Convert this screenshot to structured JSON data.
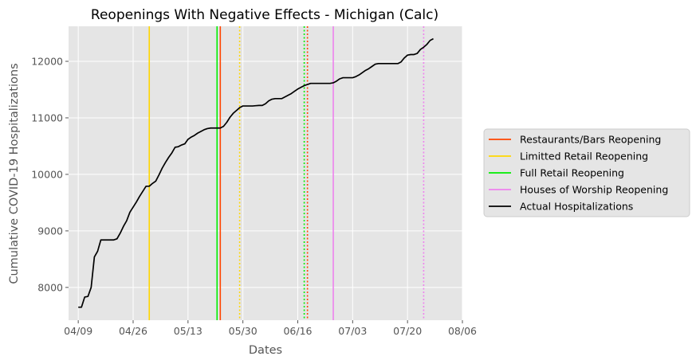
{
  "chart_data": {
    "type": "line",
    "title": "Reopenings With Negative Effects - Michigan (Calc)",
    "xlabel": "Dates",
    "ylabel": "Cumulative COVID-19 Hospitalizations",
    "x_axis_type": "date",
    "xlim": [
      "2020-04-06",
      "2020-08-06"
    ],
    "ylim": [
      7420,
      12620
    ],
    "x_ticks": [
      {
        "date": "2020-04-09",
        "label": "04/09"
      },
      {
        "date": "2020-04-26",
        "label": "04/26"
      },
      {
        "date": "2020-05-13",
        "label": "05/13"
      },
      {
        "date": "2020-05-30",
        "label": "05/30"
      },
      {
        "date": "2020-06-16",
        "label": "06/16"
      },
      {
        "date": "2020-07-03",
        "label": "07/03"
      },
      {
        "date": "2020-07-20",
        "label": "07/20"
      },
      {
        "date": "2020-08-06",
        "label": "08/06"
      }
    ],
    "y_ticks": [
      8000,
      9000,
      10000,
      11000,
      12000
    ],
    "grid": true,
    "legend_position": "right",
    "colors": {
      "restaurants": "#ff4500",
      "limited_retail": "#ffd700",
      "full_retail": "#00ee00",
      "worship": "#ee82ee",
      "actual": "#000000"
    },
    "legend": [
      {
        "label": "Restaurants/Bars Reopening",
        "color": "#ff4500"
      },
      {
        "label": "Limitted Retail Reopening",
        "color": "#ffd700"
      },
      {
        "label": "Full Retail Reopening",
        "color": "#00ee00"
      },
      {
        "label": "Houses of Worship Reopening",
        "color": "#ee82ee"
      },
      {
        "label": "Actual Hospitalizations",
        "color": "#000000"
      }
    ],
    "vertical_lines": [
      {
        "date": "2020-05-01",
        "color": "#ffd700",
        "style": "solid"
      },
      {
        "date": "2020-05-29",
        "color": "#ffd700",
        "style": "dotted"
      },
      {
        "date": "2020-05-22",
        "color": "#00ee00",
        "style": "solid"
      },
      {
        "date": "2020-06-18",
        "color": "#00ee00",
        "style": "dotted"
      },
      {
        "date": "2020-05-23",
        "color": "#ff4500",
        "style": "solid"
      },
      {
        "date": "2020-06-19",
        "color": "#ff4500",
        "style": "dotted"
      },
      {
        "date": "2020-06-27",
        "color": "#ee82ee",
        "style": "solid"
      },
      {
        "date": "2020-07-25",
        "color": "#ee82ee",
        "style": "dotted"
      }
    ],
    "series": [
      {
        "name": "Actual Hospitalizations",
        "color": "#000000",
        "points": [
          [
            "2020-04-09",
            7650
          ],
          [
            "2020-04-10",
            7650
          ],
          [
            "2020-04-11",
            7830
          ],
          [
            "2020-04-12",
            7840
          ],
          [
            "2020-04-13",
            8000
          ],
          [
            "2020-04-14",
            8540
          ],
          [
            "2020-04-15",
            8640
          ],
          [
            "2020-04-16",
            8840
          ],
          [
            "2020-04-17",
            8840
          ],
          [
            "2020-04-18",
            8840
          ],
          [
            "2020-04-19",
            8840
          ],
          [
            "2020-04-20",
            8840
          ],
          [
            "2020-04-21",
            8860
          ],
          [
            "2020-04-22",
            8960
          ],
          [
            "2020-04-23",
            9080
          ],
          [
            "2020-04-24",
            9180
          ],
          [
            "2020-04-25",
            9330
          ],
          [
            "2020-04-26",
            9420
          ],
          [
            "2020-04-27",
            9510
          ],
          [
            "2020-04-28",
            9610
          ],
          [
            "2020-04-29",
            9700
          ],
          [
            "2020-04-30",
            9790
          ],
          [
            "2020-05-01",
            9790
          ],
          [
            "2020-05-02",
            9840
          ],
          [
            "2020-05-03",
            9880
          ],
          [
            "2020-05-04",
            9990
          ],
          [
            "2020-05-05",
            10110
          ],
          [
            "2020-05-06",
            10210
          ],
          [
            "2020-05-07",
            10300
          ],
          [
            "2020-05-08",
            10380
          ],
          [
            "2020-05-09",
            10480
          ],
          [
            "2020-05-10",
            10490
          ],
          [
            "2020-05-11",
            10520
          ],
          [
            "2020-05-12",
            10540
          ],
          [
            "2020-05-13",
            10620
          ],
          [
            "2020-05-14",
            10660
          ],
          [
            "2020-05-15",
            10690
          ],
          [
            "2020-05-16",
            10730
          ],
          [
            "2020-05-17",
            10760
          ],
          [
            "2020-05-18",
            10790
          ],
          [
            "2020-05-19",
            10810
          ],
          [
            "2020-05-20",
            10820
          ],
          [
            "2020-05-21",
            10820
          ],
          [
            "2020-05-22",
            10820
          ],
          [
            "2020-05-23",
            10820
          ],
          [
            "2020-05-24",
            10850
          ],
          [
            "2020-05-25",
            10920
          ],
          [
            "2020-05-26",
            11010
          ],
          [
            "2020-05-27",
            11080
          ],
          [
            "2020-05-28",
            11130
          ],
          [
            "2020-05-29",
            11180
          ],
          [
            "2020-05-30",
            11210
          ],
          [
            "2020-05-31",
            11210
          ],
          [
            "2020-06-01",
            11210
          ],
          [
            "2020-06-02",
            11210
          ],
          [
            "2020-06-03",
            11215
          ],
          [
            "2020-06-04",
            11220
          ],
          [
            "2020-06-05",
            11220
          ],
          [
            "2020-06-06",
            11250
          ],
          [
            "2020-06-07",
            11300
          ],
          [
            "2020-06-08",
            11330
          ],
          [
            "2020-06-09",
            11340
          ],
          [
            "2020-06-10",
            11340
          ],
          [
            "2020-06-11",
            11340
          ],
          [
            "2020-06-12",
            11370
          ],
          [
            "2020-06-13",
            11400
          ],
          [
            "2020-06-14",
            11430
          ],
          [
            "2020-06-15",
            11470
          ],
          [
            "2020-06-16",
            11510
          ],
          [
            "2020-06-17",
            11540
          ],
          [
            "2020-06-18",
            11570
          ],
          [
            "2020-06-19",
            11590
          ],
          [
            "2020-06-20",
            11610
          ],
          [
            "2020-06-21",
            11610
          ],
          [
            "2020-06-22",
            11610
          ],
          [
            "2020-06-23",
            11610
          ],
          [
            "2020-06-24",
            11610
          ],
          [
            "2020-06-25",
            11610
          ],
          [
            "2020-06-26",
            11610
          ],
          [
            "2020-06-27",
            11620
          ],
          [
            "2020-06-28",
            11650
          ],
          [
            "2020-06-29",
            11690
          ],
          [
            "2020-06-30",
            11710
          ],
          [
            "2020-07-01",
            11710
          ],
          [
            "2020-07-02",
            11710
          ],
          [
            "2020-07-03",
            11710
          ],
          [
            "2020-07-04",
            11730
          ],
          [
            "2020-07-05",
            11760
          ],
          [
            "2020-07-06",
            11800
          ],
          [
            "2020-07-07",
            11840
          ],
          [
            "2020-07-08",
            11870
          ],
          [
            "2020-07-09",
            11910
          ],
          [
            "2020-07-10",
            11950
          ],
          [
            "2020-07-11",
            11960
          ],
          [
            "2020-07-12",
            11960
          ],
          [
            "2020-07-13",
            11960
          ],
          [
            "2020-07-14",
            11960
          ],
          [
            "2020-07-15",
            11960
          ],
          [
            "2020-07-16",
            11960
          ],
          [
            "2020-07-17",
            11960
          ],
          [
            "2020-07-18",
            11990
          ],
          [
            "2020-07-19",
            12060
          ],
          [
            "2020-07-20",
            12110
          ],
          [
            "2020-07-21",
            12120
          ],
          [
            "2020-07-22",
            12120
          ],
          [
            "2020-07-23",
            12140
          ],
          [
            "2020-07-24",
            12210
          ],
          [
            "2020-07-25",
            12250
          ],
          [
            "2020-07-26",
            12300
          ],
          [
            "2020-07-27",
            12370
          ],
          [
            "2020-07-28",
            12400
          ]
        ]
      }
    ]
  }
}
